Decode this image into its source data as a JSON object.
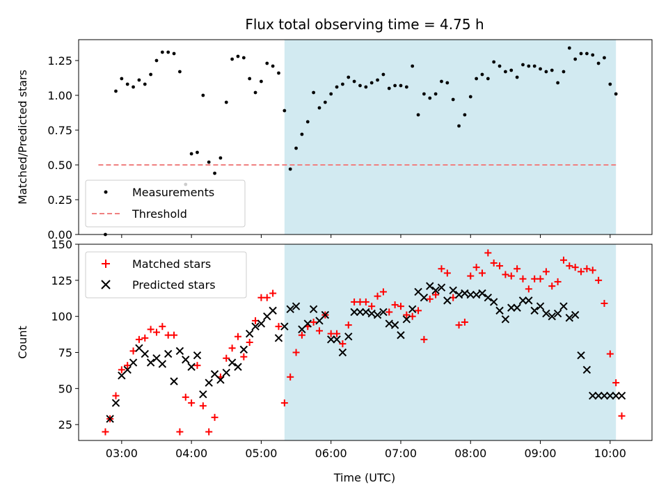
{
  "chart_data": {
    "title": "Flux total observing time = 4.75 h",
    "xlabel": "Time (UTC)",
    "x_ticks": [
      "03:00",
      "04:00",
      "05:00",
      "06:00",
      "07:00",
      "08:00",
      "09:00",
      "10:00"
    ],
    "x_tick_minutes": [
      180,
      240,
      300,
      360,
      420,
      480,
      540,
      600
    ],
    "xlim": [
      143,
      636
    ],
    "shaded_interval": [
      "05:20",
      "10:05"
    ],
    "shaded_minutes": [
      320,
      605
    ],
    "shaded_color": "#add8e6",
    "panels": [
      {
        "type": "scatter",
        "ylabel": "Matched/Predicted stars",
        "ylim": [
          0,
          1.4
        ],
        "y_ticks": [
          0.0,
          0.25,
          0.5,
          0.75,
          1.0,
          1.25
        ],
        "y_tick_labels": [
          "0.00",
          "0.25",
          "0.50",
          "0.75",
          "1.00",
          "1.25"
        ],
        "legend_position": "lower-left",
        "series": [
          {
            "name": "Measurements",
            "marker": "dot",
            "color": "#000000",
            "x": [
              166,
              175,
              180,
              185,
              190,
              195,
              200,
              205,
              210,
              215,
              220,
              225,
              230,
              235,
              240,
              245,
              250,
              255,
              260,
              265,
              270,
              275,
              280,
              285,
              290,
              295,
              300,
              305,
              310,
              315,
              320,
              325,
              330,
              335,
              340,
              345,
              350,
              355,
              360,
              365,
              370,
              375,
              380,
              385,
              390,
              395,
              400,
              405,
              410,
              415,
              420,
              425,
              430,
              435,
              440,
              445,
              450,
              455,
              460,
              465,
              470,
              475,
              480,
              485,
              490,
              495,
              500,
              505,
              510,
              515,
              520,
              525,
              530,
              535,
              540,
              545,
              550,
              555,
              560,
              565,
              570,
              575,
              580,
              585,
              590,
              595,
              600,
              605
            ],
            "y": [
              0.0,
              1.03,
              1.12,
              1.08,
              1.06,
              1.11,
              1.08,
              1.15,
              1.25,
              1.31,
              1.31,
              1.3,
              1.17,
              0.36,
              0.58,
              0.59,
              1.0,
              0.52,
              0.44,
              0.55,
              0.95,
              1.26,
              1.28,
              1.27,
              1.12,
              1.02,
              1.1,
              1.23,
              1.21,
              1.16,
              0.89,
              0.47,
              0.62,
              0.72,
              0.81,
              1.02,
              0.91,
              0.95,
              1.01,
              1.06,
              1.08,
              1.13,
              1.1,
              1.07,
              1.06,
              1.09,
              1.11,
              1.15,
              1.05,
              1.07,
              1.07,
              1.06,
              1.21,
              0.86,
              1.01,
              0.98,
              1.01,
              1.1,
              1.09,
              0.97,
              0.78,
              0.86,
              0.99,
              1.12,
              1.15,
              1.12,
              1.24,
              1.21,
              1.17,
              1.18,
              1.13,
              1.22,
              1.21,
              1.21,
              1.19,
              1.17,
              1.18,
              1.09,
              1.17,
              1.34,
              1.26,
              1.3,
              1.3,
              1.29,
              1.23,
              1.27,
              1.08,
              1.01
            ]
          },
          {
            "name": "Threshold",
            "type": "line",
            "style": "dashed",
            "color": "#f08080",
            "x": [
              160,
              605
            ],
            "y": [
              0.5,
              0.5
            ]
          }
        ]
      },
      {
        "type": "scatter",
        "ylabel": "Count",
        "ylim": [
          14,
          150
        ],
        "y_ticks": [
          25,
          50,
          75,
          100,
          125,
          150
        ],
        "legend_position": "upper-left",
        "series": [
          {
            "name": "Matched stars",
            "marker": "plus",
            "color": "#ff0000",
            "x": [
              166,
              170,
              175,
              180,
              185,
              190,
              195,
              200,
              205,
              210,
              215,
              220,
              225,
              230,
              235,
              240,
              245,
              250,
              255,
              260,
              265,
              270,
              275,
              280,
              285,
              290,
              295,
              300,
              305,
              310,
              315,
              320,
              325,
              330,
              335,
              340,
              345,
              350,
              355,
              360,
              365,
              370,
              375,
              380,
              385,
              390,
              395,
              400,
              405,
              410,
              415,
              420,
              425,
              430,
              435,
              440,
              445,
              450,
              455,
              460,
              465,
              470,
              475,
              480,
              485,
              490,
              495,
              500,
              505,
              510,
              515,
              520,
              525,
              530,
              535,
              540,
              545,
              550,
              555,
              560,
              565,
              570,
              575,
              580,
              585,
              590,
              595,
              600,
              605,
              610
            ],
            "y": [
              20,
              29,
              45,
              63,
              66,
              76,
              84,
              85,
              91,
              89,
              93,
              87,
              87,
              20,
              44,
              40,
              66,
              38,
              20,
              30,
              58,
              71,
              78,
              86,
              72,
              82,
              97,
              113,
              113,
              116,
              93,
              40,
              58,
              75,
              87,
              93,
              96,
              90,
              101,
              88,
              88,
              81,
              94,
              110,
              110,
              110,
              107,
              114,
              117,
              103,
              108,
              107,
              101,
              100,
              104,
              84,
              112,
              115,
              133,
              130,
              113,
              94,
              96,
              128,
              134,
              130,
              144,
              137,
              135,
              129,
              128,
              133,
              126,
              119,
              126,
              126,
              131,
              121,
              124,
              139,
              135,
              134,
              131,
              133,
              132,
              125,
              109,
              74,
              54,
              31
            ]
          },
          {
            "name": "Predicted stars",
            "marker": "x",
            "color": "#000000",
            "x": [
              170,
              175,
              180,
              185,
              190,
              195,
              200,
              205,
              210,
              215,
              220,
              225,
              230,
              235,
              240,
              245,
              250,
              255,
              260,
              265,
              270,
              275,
              280,
              285,
              290,
              295,
              300,
              305,
              310,
              315,
              320,
              325,
              330,
              335,
              340,
              345,
              350,
              355,
              360,
              365,
              370,
              375,
              380,
              385,
              390,
              395,
              400,
              405,
              410,
              415,
              420,
              425,
              430,
              435,
              440,
              445,
              450,
              455,
              460,
              465,
              470,
              475,
              480,
              485,
              490,
              495,
              500,
              505,
              510,
              515,
              520,
              525,
              530,
              535,
              540,
              545,
              550,
              555,
              560,
              565,
              570,
              575,
              580,
              585,
              590,
              595,
              600,
              605,
              610
            ],
            "y": [
              29,
              40,
              59,
              63,
              68,
              78,
              74,
              68,
              71,
              67,
              74,
              55,
              76,
              70,
              65,
              73,
              46,
              54,
              60,
              56,
              61,
              68,
              65,
              77,
              88,
              93,
              95,
              100,
              104,
              85,
              93,
              105,
              107,
              91,
              95,
              105,
              97,
              101,
              84,
              84,
              75,
              86,
              103,
              103,
              103,
              102,
              101,
              103,
              95,
              94,
              87,
              98,
              105,
              117,
              113,
              121,
              118,
              120,
              111,
              118,
              115,
              116,
              115,
              115,
              116,
              113,
              110,
              104,
              98,
              106,
              106,
              111,
              111,
              104,
              107,
              102,
              100,
              102,
              107,
              99,
              101,
              73,
              63,
              45,
              45,
              45,
              45,
              45,
              45
            ]
          }
        ]
      }
    ]
  }
}
